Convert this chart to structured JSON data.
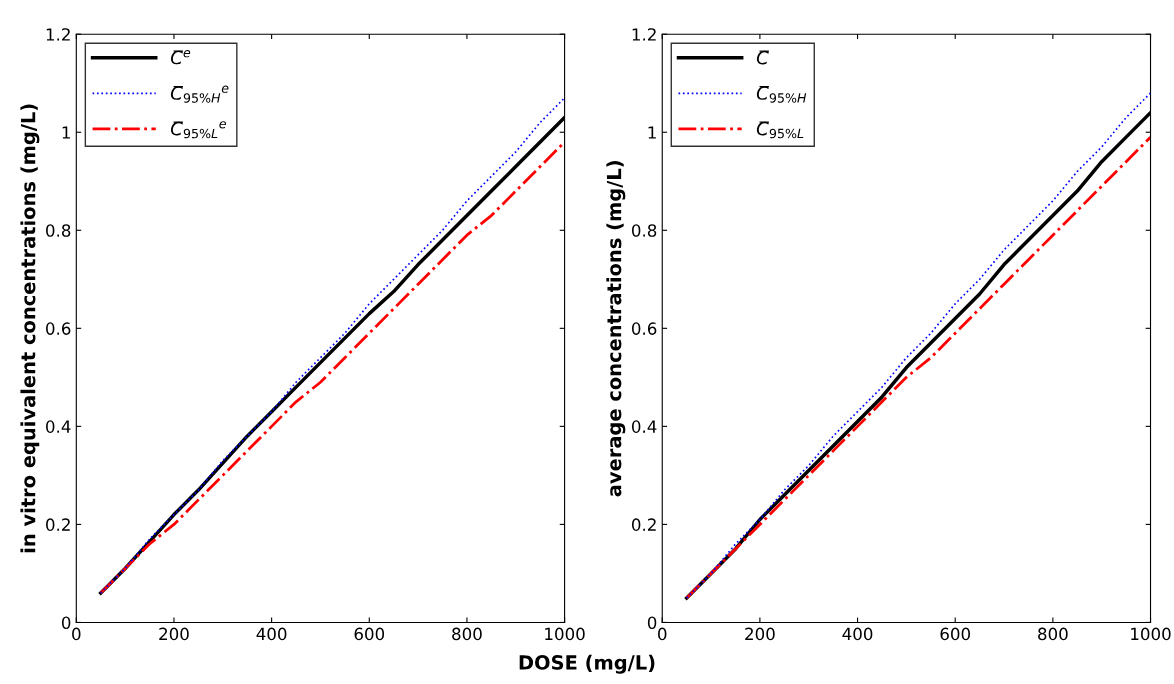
{
  "chart_data": [
    {
      "type": "line",
      "xlabel": "DOSE (mg/L)",
      "ylabel": "in vitro equivalent concentrations (mg/L)",
      "x": [
        50,
        100,
        150,
        200,
        250,
        300,
        350,
        400,
        450,
        500,
        550,
        600,
        650,
        700,
        750,
        800,
        850,
        900,
        950,
        1000
      ],
      "xlim": [
        0,
        1000
      ],
      "xticks": [
        0,
        200,
        400,
        600,
        800,
        1000
      ],
      "ylim": [
        0,
        1.2
      ],
      "yticks": [
        0,
        0.2,
        0.4,
        0.6,
        0.8,
        1,
        1.2
      ],
      "legend": "top left",
      "grid": false,
      "marker": "none",
      "series": [
        {
          "name": "C̅$^{e}$",
          "color": "#000000",
          "line_style": "solid",
          "values": [
            0.06,
            0.11,
            0.165,
            0.22,
            0.27,
            0.325,
            0.38,
            0.43,
            0.48,
            0.53,
            0.58,
            0.63,
            0.675,
            0.73,
            0.78,
            0.83,
            0.88,
            0.93,
            0.98,
            1.03
          ]
        },
        {
          "name": "C̅$_{95%H}$$^{e}$",
          "color": "#0000ff",
          "line_style": "dotted",
          "values": [
            0.06,
            0.11,
            0.17,
            0.22,
            0.27,
            0.33,
            0.38,
            0.43,
            0.49,
            0.54,
            0.59,
            0.65,
            0.7,
            0.75,
            0.8,
            0.86,
            0.91,
            0.96,
            1.02,
            1.07
          ]
        },
        {
          "name": "C̅$_{95%L}$$^{e}$",
          "color": "#ff0000",
          "line_style": "dashdot",
          "values": [
            0.06,
            0.11,
            0.16,
            0.2,
            0.25,
            0.3,
            0.35,
            0.4,
            0.45,
            0.49,
            0.54,
            0.59,
            0.64,
            0.69,
            0.74,
            0.79,
            0.83,
            0.88,
            0.93,
            0.98
          ]
        }
      ]
    },
    {
      "type": "line",
      "ylabel": "average concentrations (mg/L)",
      "x": [
        50,
        100,
        150,
        200,
        250,
        300,
        350,
        400,
        450,
        500,
        550,
        600,
        650,
        700,
        750,
        800,
        850,
        900,
        950,
        1000
      ],
      "xlim": [
        0,
        1000
      ],
      "xticks": [
        0,
        200,
        400,
        600,
        800,
        1000
      ],
      "ylim": [
        0,
        1.2
      ],
      "yticks": [
        0,
        0.2,
        0.4,
        0.6,
        0.8,
        1,
        1.2
      ],
      "legend": "top left",
      "grid": false,
      "marker": "none",
      "series": [
        {
          "name": "C̅",
          "color": "#000000",
          "line_style": "solid",
          "values": [
            0.05,
            0.1,
            0.15,
            0.21,
            0.26,
            0.31,
            0.36,
            0.41,
            0.46,
            0.52,
            0.57,
            0.62,
            0.67,
            0.73,
            0.78,
            0.83,
            0.88,
            0.94,
            0.99,
            1.04
          ]
        },
        {
          "name": "C̅$_{95%H}$",
          "color": "#0000ff",
          "line_style": "dotted",
          "values": [
            0.05,
            0.1,
            0.16,
            0.21,
            0.27,
            0.32,
            0.38,
            0.43,
            0.48,
            0.54,
            0.59,
            0.65,
            0.7,
            0.76,
            0.81,
            0.86,
            0.92,
            0.97,
            1.03,
            1.08
          ]
        },
        {
          "name": "C̅$_{95%L}$",
          "color": "#ff0000",
          "line_style": "dashdot",
          "values": [
            0.05,
            0.1,
            0.15,
            0.2,
            0.25,
            0.3,
            0.35,
            0.4,
            0.45,
            0.5,
            0.54,
            0.59,
            0.64,
            0.69,
            0.74,
            0.79,
            0.84,
            0.89,
            0.94,
            0.99
          ]
        }
      ]
    }
  ]
}
